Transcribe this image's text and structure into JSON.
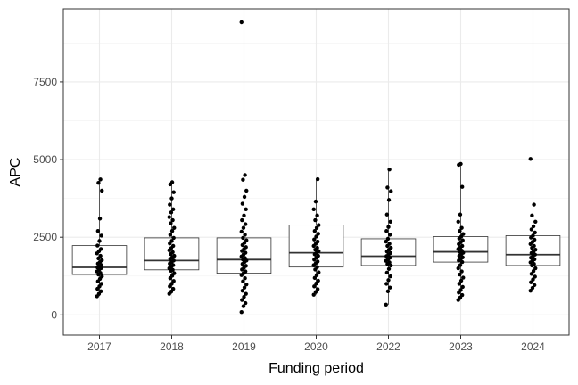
{
  "chart_data": {
    "type": "box",
    "xlabel": "Funding period",
    "ylabel": "APC",
    "ylim": [
      -650,
      9850
    ],
    "yticks": [
      0,
      2500,
      5000,
      7500
    ],
    "grid": true,
    "categories": [
      "2017",
      "2018",
      "2019",
      "2020",
      "2022",
      "2023",
      "2024"
    ],
    "boxes": [
      {
        "category": "2017",
        "q1": 1300,
        "median": 1530,
        "q3": 2230,
        "whisker_low": 600,
        "whisker_high": 4360,
        "points": [
          600,
          680,
          760,
          840,
          920,
          1000,
          1080,
          1160,
          1240,
          1300,
          1350,
          1400,
          1450,
          1500,
          1530,
          1560,
          1600,
          1650,
          1700,
          1760,
          1820,
          1900,
          1980,
          2050,
          2120,
          2230,
          2380,
          2550,
          2700,
          3100,
          4000,
          4250,
          4360
        ]
      },
      {
        "category": "2018",
        "q1": 1450,
        "median": 1750,
        "q3": 2480,
        "whisker_low": 680,
        "whisker_high": 4270,
        "points": [
          680,
          750,
          840,
          920,
          1000,
          1090,
          1180,
          1260,
          1340,
          1420,
          1450,
          1500,
          1550,
          1600,
          1650,
          1700,
          1750,
          1800,
          1850,
          1900,
          1960,
          2020,
          2080,
          2150,
          2220,
          2300,
          2380,
          2480,
          2580,
          2700,
          2800,
          2950,
          3050,
          3150,
          3300,
          3400,
          3550,
          3750,
          3950,
          4200,
          4270
        ]
      },
      {
        "category": "2019",
        "q1": 1340,
        "median": 1780,
        "q3": 2480,
        "whisker_low": 90,
        "whisker_high": 9420,
        "points": [
          90,
          280,
          380,
          480,
          580,
          680,
          780,
          880,
          980,
          1080,
          1180,
          1280,
          1340,
          1400,
          1460,
          1520,
          1580,
          1640,
          1700,
          1750,
          1780,
          1830,
          1880,
          1940,
          2000,
          2060,
          2120,
          2180,
          2250,
          2320,
          2400,
          2480,
          2580,
          2680,
          2800,
          2920,
          3050,
          3200,
          3400,
          3580,
          3800,
          4000,
          4350,
          4500,
          9420
        ]
      },
      {
        "category": "2020",
        "q1": 1540,
        "median": 2000,
        "q3": 2890,
        "whisker_low": 650,
        "whisker_high": 4370,
        "points": [
          650,
          740,
          830,
          920,
          1010,
          1100,
          1190,
          1280,
          1370,
          1460,
          1540,
          1600,
          1660,
          1720,
          1780,
          1840,
          1900,
          1950,
          2000,
          2050,
          2100,
          2160,
          2220,
          2290,
          2360,
          2430,
          2520,
          2610,
          2700,
          2800,
          2890,
          3050,
          3200,
          3400,
          3650,
          4370
        ]
      },
      {
        "category": "2022",
        "q1": 1590,
        "median": 1890,
        "q3": 2450,
        "whisker_low": 330,
        "whisker_high": 4680,
        "points": [
          330,
          760,
          880,
          1000,
          1120,
          1240,
          1360,
          1480,
          1590,
          1640,
          1690,
          1740,
          1790,
          1840,
          1890,
          1940,
          1990,
          2040,
          2100,
          2160,
          2220,
          2290,
          2360,
          2450,
          2580,
          2700,
          2830,
          3000,
          3230,
          3700,
          3980,
          4100,
          4680
        ]
      },
      {
        "category": "2023",
        "q1": 1700,
        "median": 2030,
        "q3": 2520,
        "whisker_low": 480,
        "whisker_high": 4860,
        "points": [
          480,
          560,
          640,
          720,
          800,
          900,
          1000,
          1100,
          1200,
          1300,
          1400,
          1500,
          1600,
          1700,
          1750,
          1800,
          1850,
          1900,
          1950,
          2000,
          2030,
          2070,
          2120,
          2170,
          2220,
          2280,
          2340,
          2400,
          2460,
          2520,
          2600,
          2700,
          2800,
          3000,
          3230,
          4120,
          4830,
          4860
        ]
      },
      {
        "category": "2024",
        "q1": 1590,
        "median": 1940,
        "q3": 2550,
        "whisker_low": 780,
        "whisker_high": 5020,
        "points": [
          780,
          870,
          960,
          1050,
          1140,
          1230,
          1320,
          1410,
          1500,
          1590,
          1640,
          1690,
          1740,
          1790,
          1840,
          1890,
          1940,
          1990,
          2040,
          2100,
          2160,
          2220,
          2280,
          2350,
          2420,
          2490,
          2550,
          2650,
          2750,
          2850,
          3000,
          3200,
          3550,
          5020
        ]
      }
    ]
  }
}
